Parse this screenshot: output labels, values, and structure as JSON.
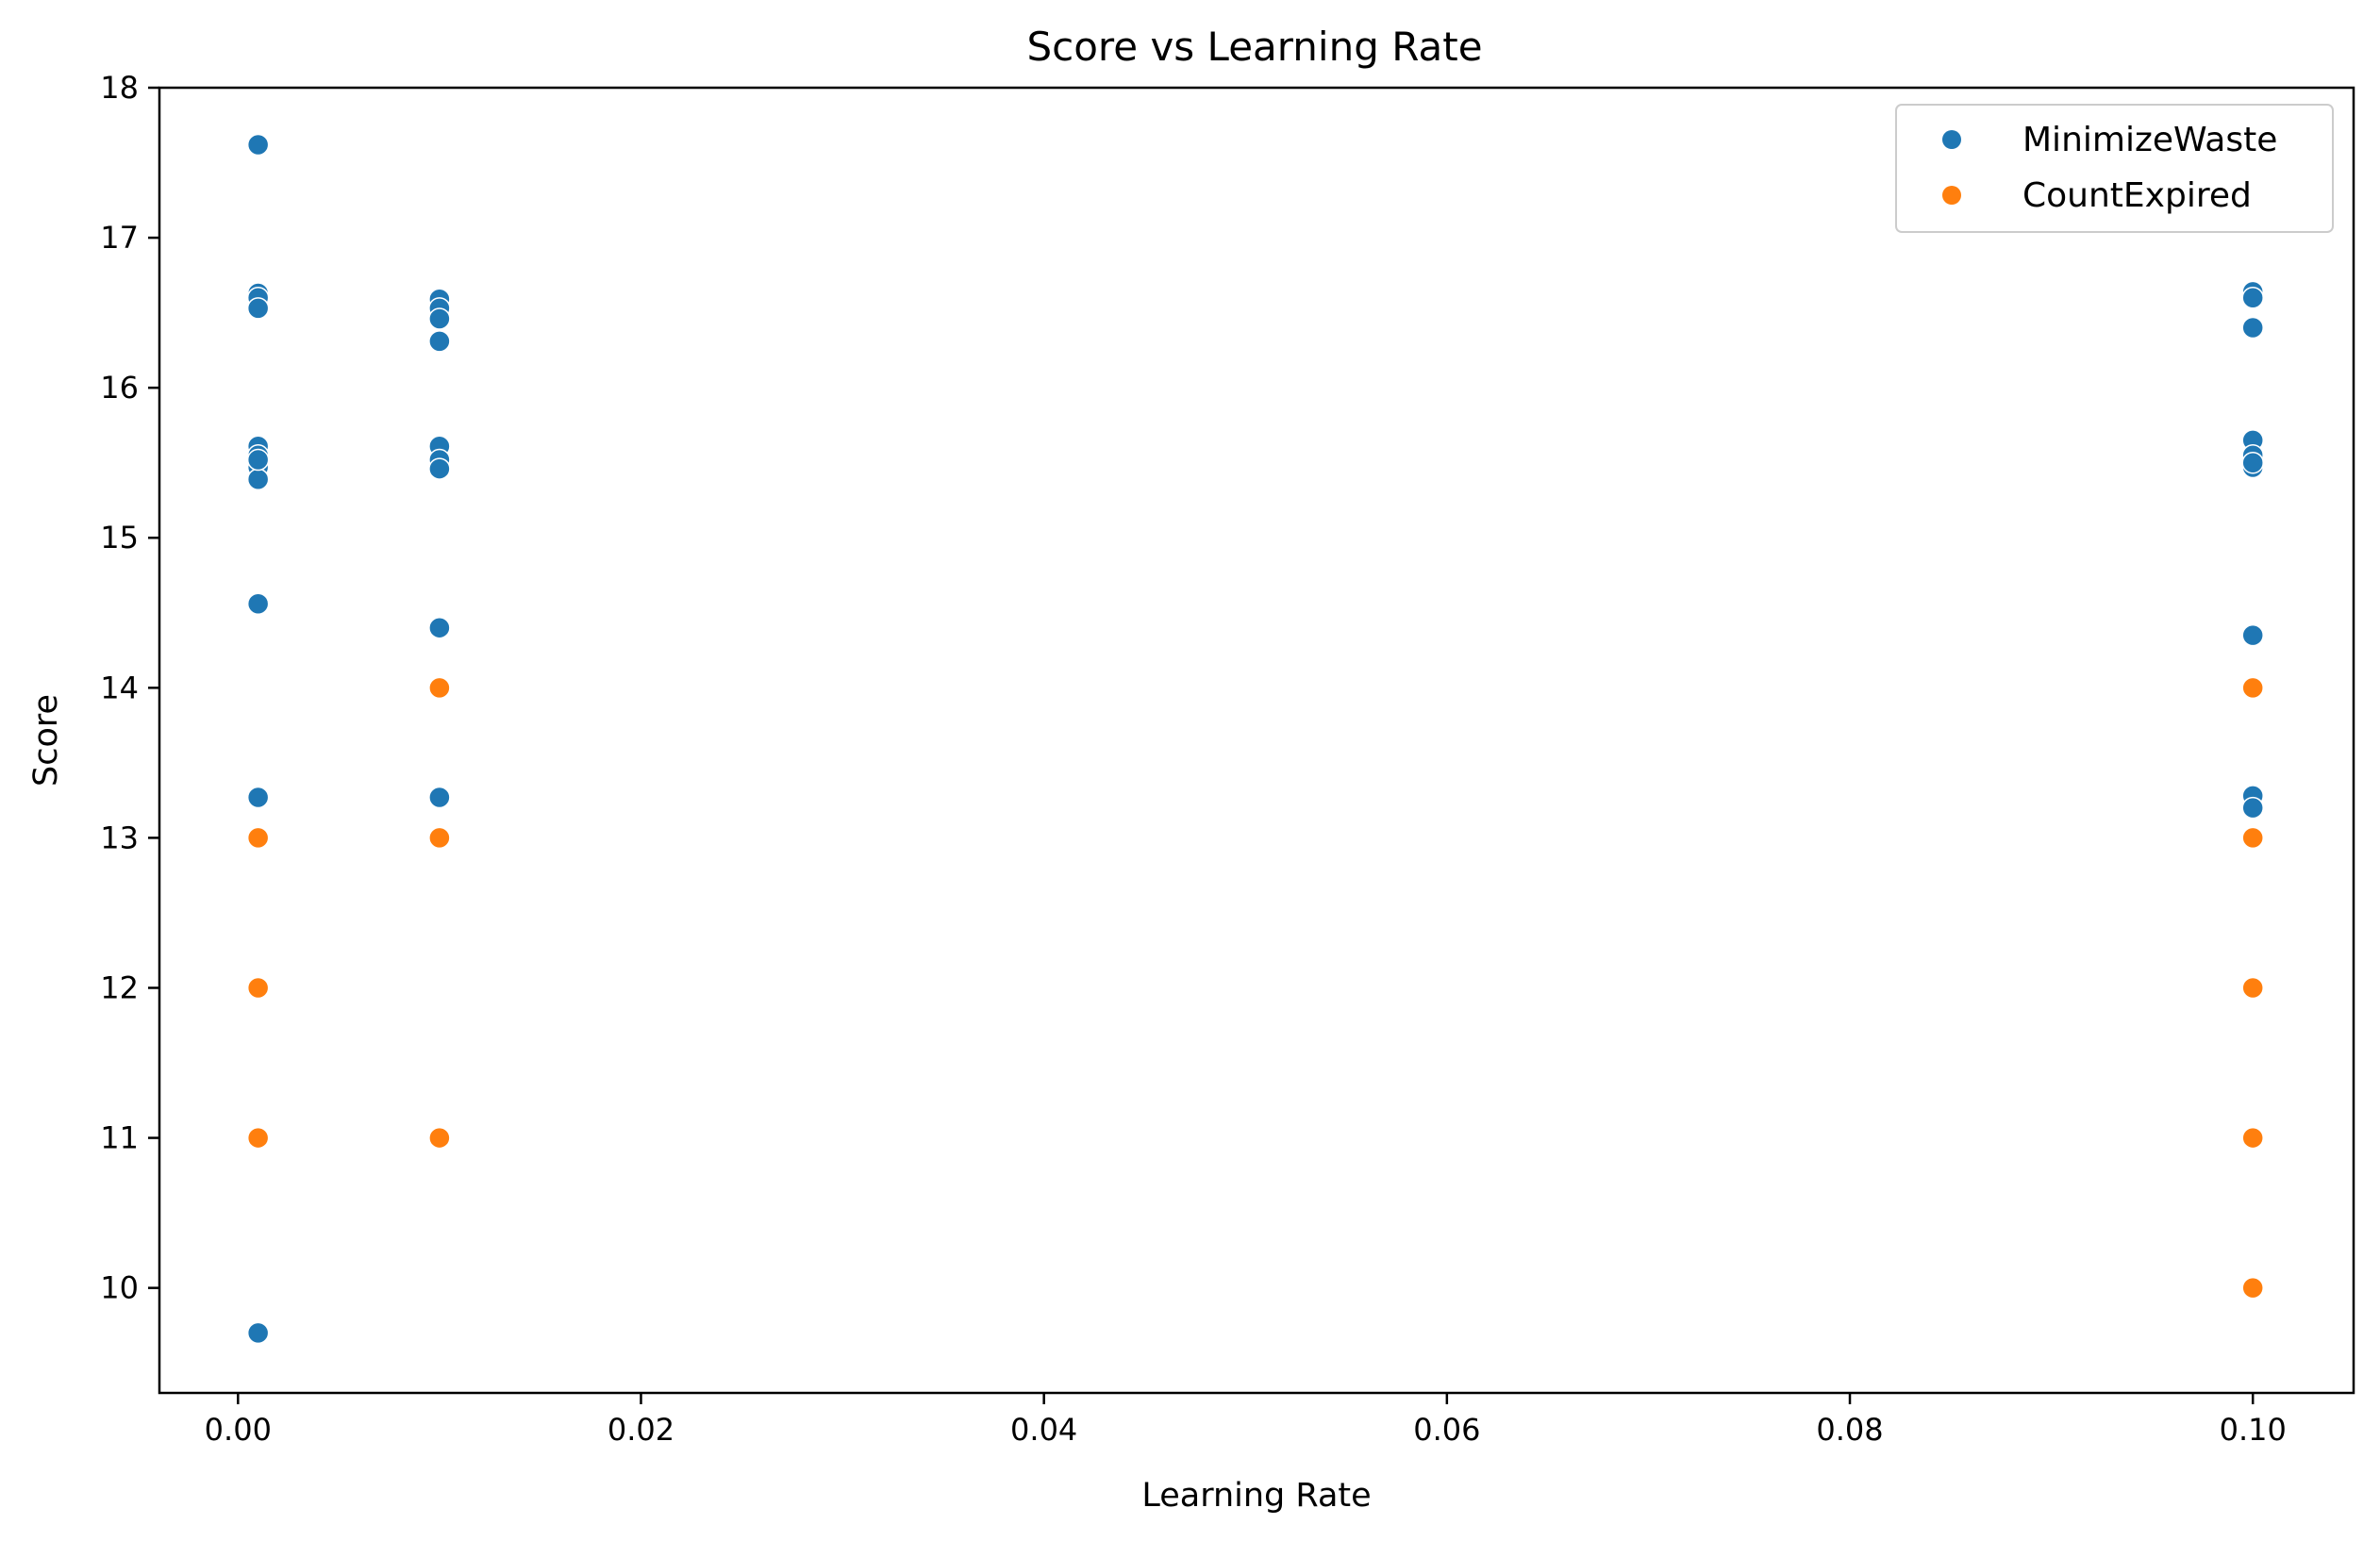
{
  "chart_data": {
    "type": "scatter",
    "title": "Score vs Learning Rate",
    "xlabel": "Learning Rate",
    "ylabel": "Score",
    "xlim": [
      -0.0039,
      0.105
    ],
    "ylim": [
      9.3,
      18.0
    ],
    "xticks": [
      0.0,
      0.02,
      0.04,
      0.06,
      0.08,
      0.1
    ],
    "xtick_labels": [
      "0.00",
      "0.02",
      "0.04",
      "0.06",
      "0.08",
      "0.10"
    ],
    "yticks": [
      10,
      11,
      12,
      13,
      14,
      15,
      16,
      17,
      18
    ],
    "ytick_labels": [
      "10",
      "11",
      "12",
      "13",
      "14",
      "15",
      "16",
      "17",
      "18"
    ],
    "grid": false,
    "legend_position": "top-right",
    "series": [
      {
        "name": "MinimizeWaste",
        "color": "#1f77b4",
        "points": [
          [
            0.001,
            17.62
          ],
          [
            0.001,
            16.63
          ],
          [
            0.001,
            16.6
          ],
          [
            0.001,
            16.53
          ],
          [
            0.001,
            15.61
          ],
          [
            0.001,
            15.55
          ],
          [
            0.001,
            15.47
          ],
          [
            0.001,
            15.39
          ],
          [
            0.001,
            15.52
          ],
          [
            0.001,
            14.56
          ],
          [
            0.001,
            13.27
          ],
          [
            0.001,
            9.7
          ],
          [
            0.01,
            16.59
          ],
          [
            0.01,
            16.53
          ],
          [
            0.01,
            16.46
          ],
          [
            0.01,
            16.31
          ],
          [
            0.01,
            15.61
          ],
          [
            0.01,
            15.52
          ],
          [
            0.01,
            15.46
          ],
          [
            0.01,
            14.4
          ],
          [
            0.01,
            13.27
          ],
          [
            0.1,
            16.64
          ],
          [
            0.1,
            16.6
          ],
          [
            0.1,
            16.4
          ],
          [
            0.1,
            15.65
          ],
          [
            0.1,
            15.55
          ],
          [
            0.1,
            15.47
          ],
          [
            0.1,
            15.5
          ],
          [
            0.1,
            14.35
          ],
          [
            0.1,
            13.28
          ],
          [
            0.1,
            13.2
          ]
        ]
      },
      {
        "name": "CountExpired",
        "color": "#ff7f0e",
        "points": [
          [
            0.001,
            13.0
          ],
          [
            0.001,
            12.0
          ],
          [
            0.001,
            11.0
          ],
          [
            0.01,
            14.0
          ],
          [
            0.01,
            13.0
          ],
          [
            0.01,
            11.0
          ],
          [
            0.1,
            14.0
          ],
          [
            0.1,
            13.0
          ],
          [
            0.1,
            12.0
          ],
          [
            0.1,
            11.0
          ],
          [
            0.1,
            10.0
          ]
        ]
      }
    ]
  }
}
